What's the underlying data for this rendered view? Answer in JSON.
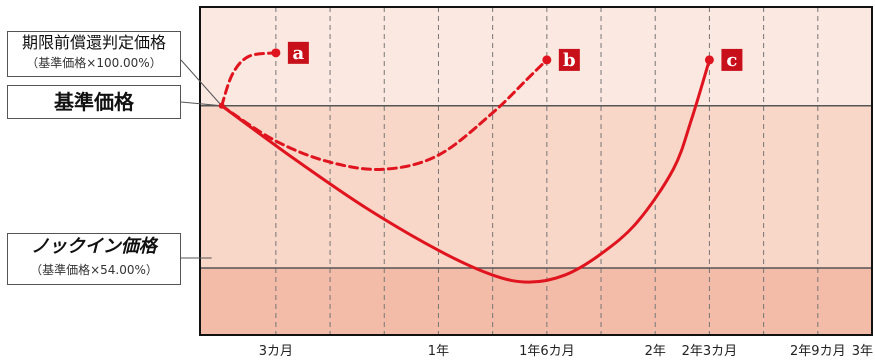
{
  "chart_data": {
    "type": "line",
    "title": "",
    "xlabel": "",
    "ylabel": "",
    "x_tick_labels": [
      {
        "at_month": 3,
        "text": "3カ月"
      },
      {
        "at_month": 12,
        "text": "1年"
      },
      {
        "at_month": 18,
        "text": "1年6カ月"
      },
      {
        "at_month": 24,
        "text": "2年"
      },
      {
        "at_month": 27,
        "text": "2年3カ月"
      },
      {
        "at_month": 33,
        "text": "2年9カ月"
      },
      {
        "at_month": 36,
        "text": "3年"
      }
    ],
    "x_range_months": [
      -1.2,
      36
    ],
    "y_range_pct": [
      35,
      128
    ],
    "levels": {
      "early_redemption": {
        "value_pct": 100.0,
        "label": "期限前償還判定価格",
        "sublabel": "（基準価格×100.00%）"
      },
      "base": {
        "value_pct": 100.0,
        "label": "基準価格"
      },
      "knock_in": {
        "value_pct": 54.0,
        "label": "ノックイン価格",
        "sublabel": "（基準価格×54.00%）"
      }
    },
    "zones": [
      {
        "name": "above-early-redemption",
        "color": "#fbe8e1"
      },
      {
        "name": "between",
        "color": "#f8d6c8"
      },
      {
        "name": "below-knock-in",
        "color": "#f3bca8"
      }
    ],
    "series": [
      {
        "id": "a",
        "label": "a",
        "style": "dashed",
        "points": [
          [
            0,
            100
          ],
          [
            0.6,
            109
          ],
          [
            1.5,
            114
          ],
          [
            3,
            115
          ]
        ]
      },
      {
        "id": "b",
        "label": "b",
        "style": "dashed",
        "points": [
          [
            0,
            100
          ],
          [
            3,
            90
          ],
          [
            6,
            84
          ],
          [
            9,
            82
          ],
          [
            12,
            86
          ],
          [
            15,
            98
          ],
          [
            17,
            108
          ],
          [
            18,
            113
          ]
        ]
      },
      {
        "id": "c",
        "label": "c",
        "style": "solid",
        "points": [
          [
            0,
            100
          ],
          [
            4,
            85
          ],
          [
            8,
            71
          ],
          [
            12,
            59
          ],
          [
            15,
            52
          ],
          [
            17,
            50
          ],
          [
            19,
            52
          ],
          [
            21,
            58
          ],
          [
            23,
            67
          ],
          [
            25,
            82
          ],
          [
            26,
            96
          ],
          [
            27,
            113
          ]
        ]
      }
    ],
    "grid": true,
    "colors": {
      "line": "#e0141e",
      "marker_fill": "#e0141e",
      "label_badge": "#c8101a",
      "frame": "#111111",
      "level_line": "#555555",
      "grid_line": "#777777"
    }
  }
}
